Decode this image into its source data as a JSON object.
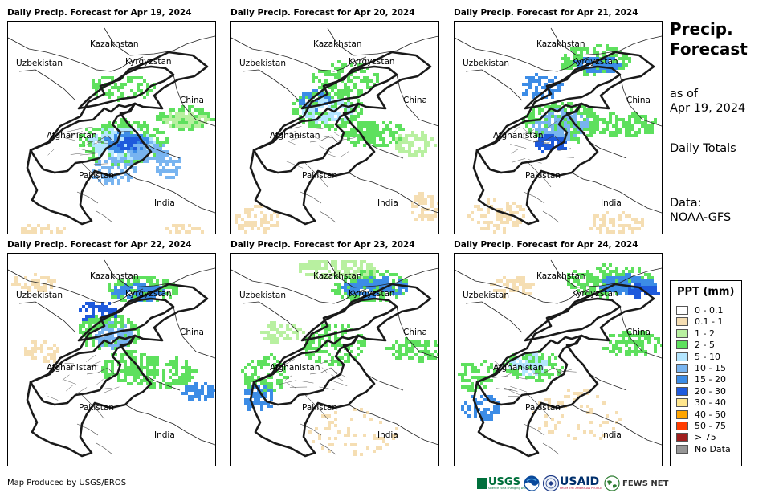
{
  "panels": [
    {
      "title": "Daily Precip. Forecast for Apr 19, 2024"
    },
    {
      "title": "Daily Precip. Forecast for Apr 20, 2024"
    },
    {
      "title": "Daily Precip. Forecast for Apr 21, 2024"
    },
    {
      "title": "Daily Precip. Forecast for Apr 22, 2024"
    },
    {
      "title": "Daily Precip. Forecast for Apr 23, 2024"
    },
    {
      "title": "Daily Precip. Forecast for Apr 24, 2024"
    }
  ],
  "map_labels": {
    "kazakhstan": "Kazakhstan",
    "uzbekistan": "Uzbekistan",
    "kyrgyzstan": "Kyrgyzstan",
    "china": "China",
    "afghanistan": "Afghanistan",
    "pakistan": "Pakistan",
    "india": "India"
  },
  "sidebar": {
    "title_line1": "Precip.",
    "title_line2": "Forecast",
    "asof_line1": "as of",
    "asof_line2": "Apr 19, 2024",
    "totals": "Daily Totals",
    "data_line1": "Data:",
    "data_line2": "NOAA-GFS"
  },
  "legend": {
    "title": "PPT (mm)",
    "items": [
      {
        "label": "0 - 0.1",
        "color": "#ffffff"
      },
      {
        "label": "0.1 - 1",
        "color": "#f5deb3"
      },
      {
        "label": "1 - 2",
        "color": "#b8f0a0"
      },
      {
        "label": "2 - 5",
        "color": "#5ee05e"
      },
      {
        "label": "5 - 10",
        "color": "#b4e6ff"
      },
      {
        "label": "10 - 15",
        "color": "#78b4f0"
      },
      {
        "label": "15 - 20",
        "color": "#3c8ce6"
      },
      {
        "label": "20 - 30",
        "color": "#1e5adc"
      },
      {
        "label": "30 - 40",
        "color": "#ffe68c"
      },
      {
        "label": "40 - 50",
        "color": "#ffa500"
      },
      {
        "label": "50 - 75",
        "color": "#ff3c00"
      },
      {
        "label": "> 75",
        "color": "#a01e1e"
      },
      {
        "label": "No Data",
        "color": "#969696"
      }
    ]
  },
  "footer": {
    "credit": "Map Produced by USGS/EROS",
    "logos": {
      "usgs": "USGS",
      "usgs_tagline": "science for a changing world",
      "usaid": "USAID",
      "usaid_tagline": "FROM THE AMERICAN PEOPLE",
      "fewsnet": "FEWS NET"
    }
  }
}
